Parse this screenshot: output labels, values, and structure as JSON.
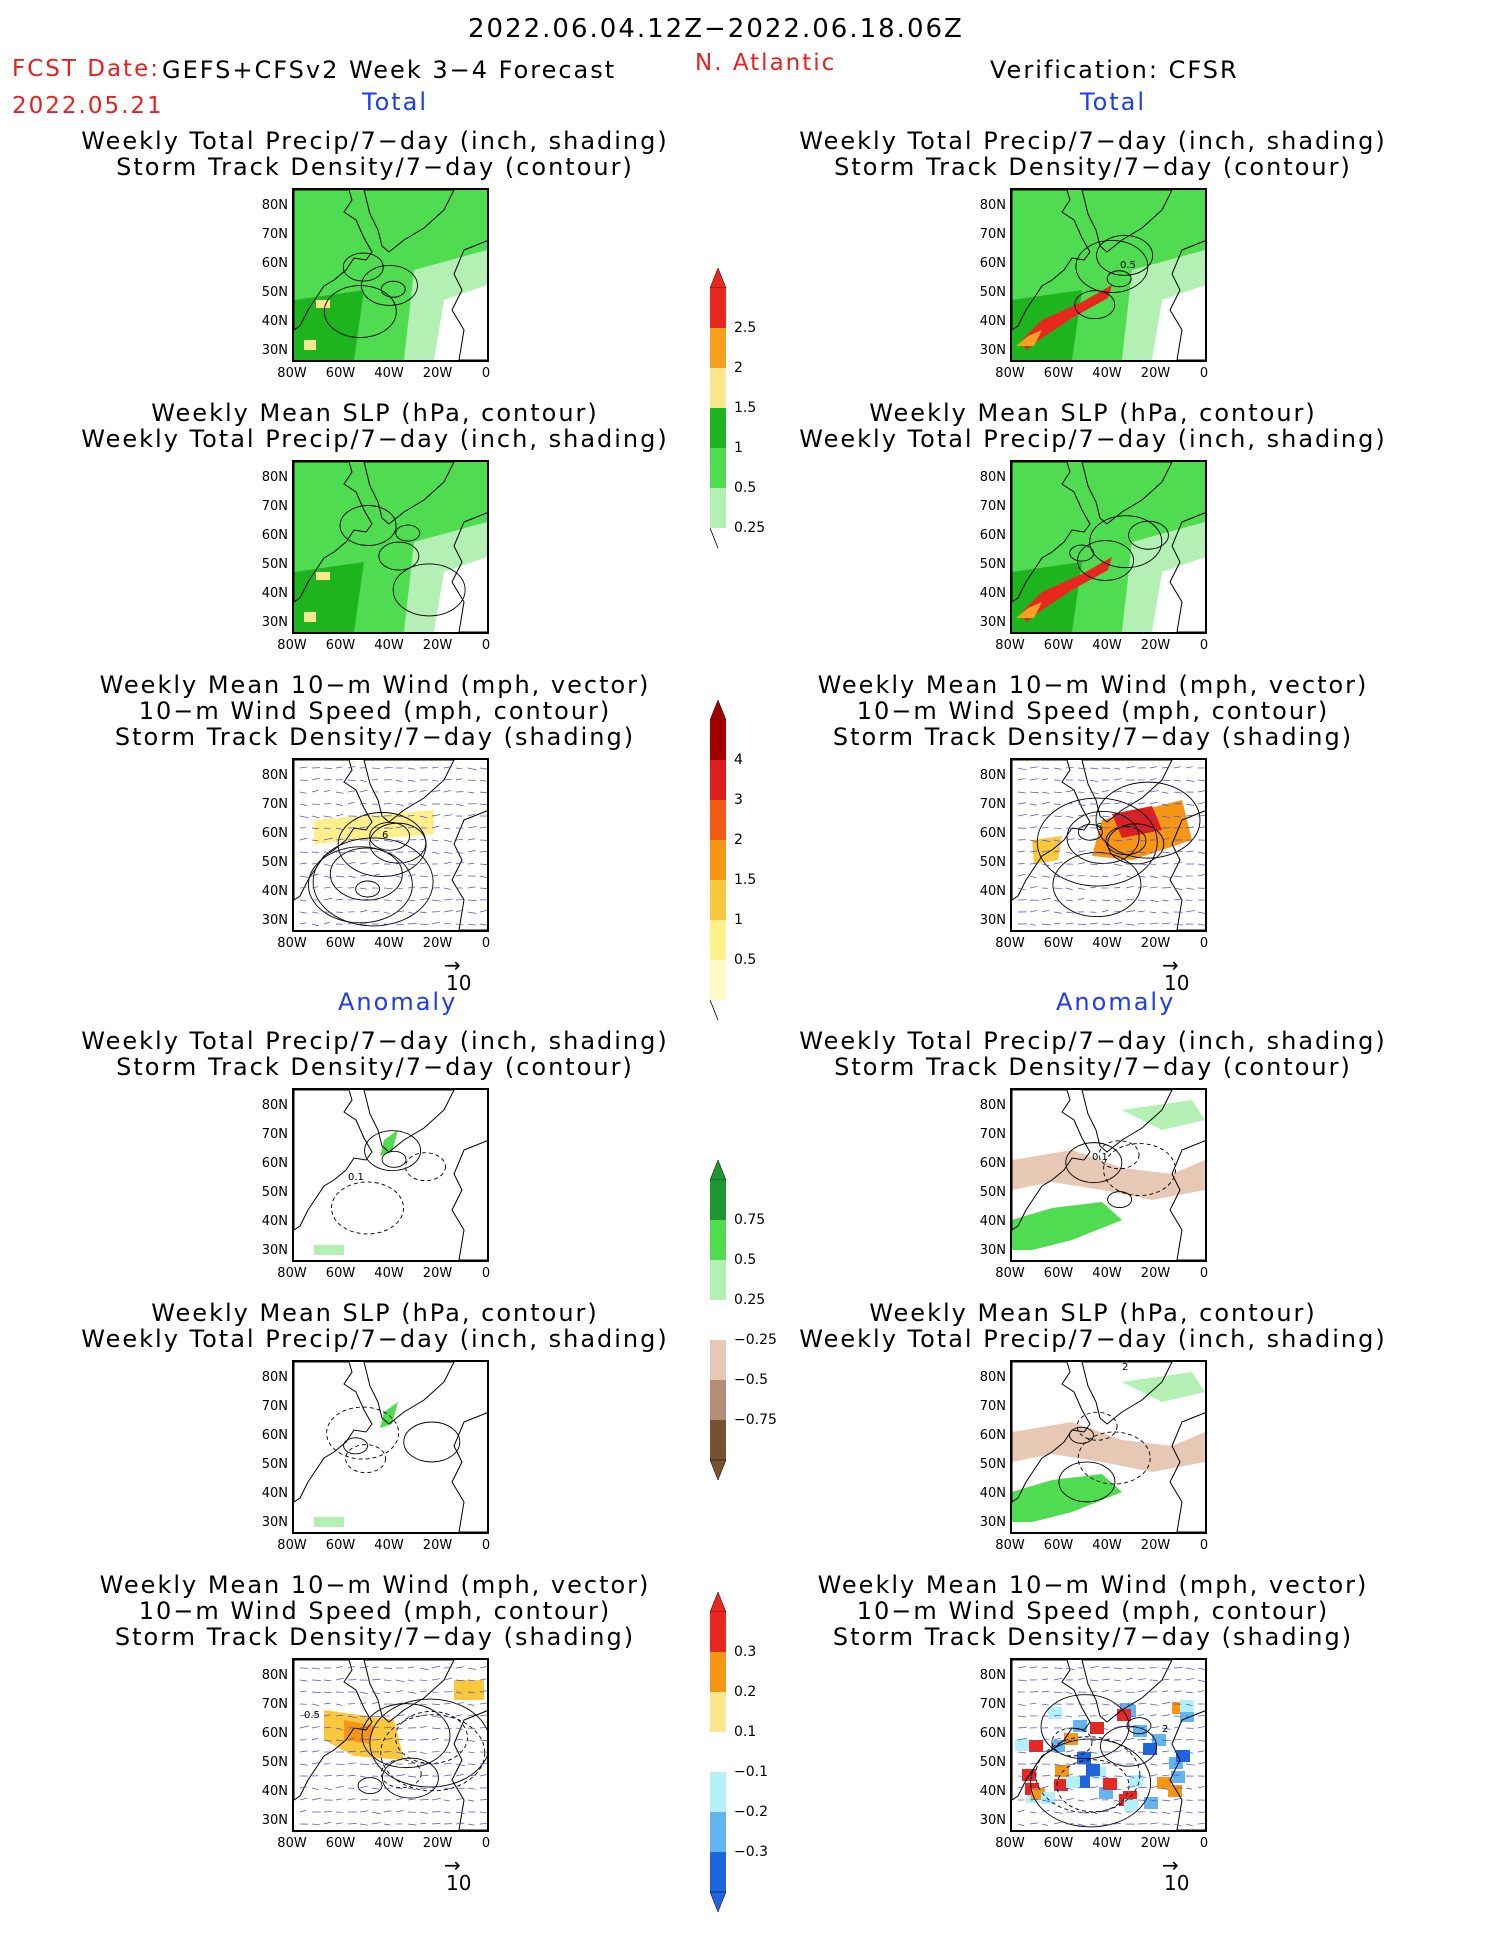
{
  "header": {
    "period": "2022.06.04.12Z−2022.06.18.06Z",
    "fcst_label": "FCST Date:",
    "fcst_date": "2022.05.21",
    "model": "GEFS+CFSv2 Week 3−4 Forecast",
    "region": "N. Atlantic",
    "verification": "Verification: CFSR"
  },
  "sections": {
    "total": "Total",
    "anomaly": "Anomaly"
  },
  "panel_titles": {
    "precip_storm": [
      "Weekly Total Precip/7−day (inch, shading)",
      "Storm Track Density/7−day (contour)"
    ],
    "slp_precip": [
      "Weekly Mean SLP (hPa, contour)",
      "Weekly Total Precip/7−day (inch, shading)"
    ],
    "wind_storm": [
      "Weekly Mean 10−m Wind (mph, vector)",
      "10−m Wind Speed (mph, contour)",
      "Storm Track Density/7−day (shading)"
    ]
  },
  "axes": {
    "lat_labels": [
      "80N",
      "70N",
      "60N",
      "50N",
      "40N",
      "30N"
    ],
    "lon_labels": [
      "80W",
      "60W",
      "40W",
      "20W",
      "0"
    ]
  },
  "vector_reference": "10",
  "colorbars": {
    "precip_total": {
      "labels": [
        "2.5",
        "2",
        "1.5",
        "1",
        "0.5",
        "0.25"
      ],
      "colors": [
        "#e8281e",
        "#f5a01e",
        "#fae68c",
        "#1eb41e",
        "#50dc50",
        "#b4f0b4"
      ]
    },
    "storm_total": {
      "labels": [
        "4",
        "3",
        "2",
        "1.5",
        "1",
        "0.5"
      ],
      "colors": [
        "#a00000",
        "#dc1e1e",
        "#f05a14",
        "#f59614",
        "#fac83c",
        "#fff08c",
        "#fffac8"
      ]
    },
    "precip_anom": {
      "labels": [
        "0.75",
        "0.5",
        "0.25",
        "−0.25",
        "−0.5",
        "−0.75"
      ],
      "colors": [
        "#1e9632",
        "#50dc50",
        "#b4f0b4",
        "#ffffff",
        "#e6c8b4",
        "#b48c78",
        "#785032"
      ]
    },
    "storm_anom": {
      "labels": [
        "0.3",
        "0.2",
        "0.1",
        "−0.1",
        "−0.2",
        "−0.3"
      ],
      "colors": [
        "#e8281e",
        "#f59614",
        "#fae68c",
        "#ffffff",
        "#b4f0fa",
        "#64b4f0",
        "#1e64dc"
      ]
    }
  },
  "contour_labels": {
    "cfsr_storm_total": "0.5",
    "fcst_wind_total": "6",
    "fcst_wind_total_b": "2",
    "cfsr_wind_total": "6",
    "cfsr_wind_total_b": "10",
    "fcst_storm_anom": "0.1",
    "cfsr_storm_anom": "0.1",
    "cfsr_slp_anom": "2",
    "fcst_wind_anom": "0.5",
    "fcst_wind_anom_b": "1.5",
    "cfsr_wind_anom": "2"
  }
}
